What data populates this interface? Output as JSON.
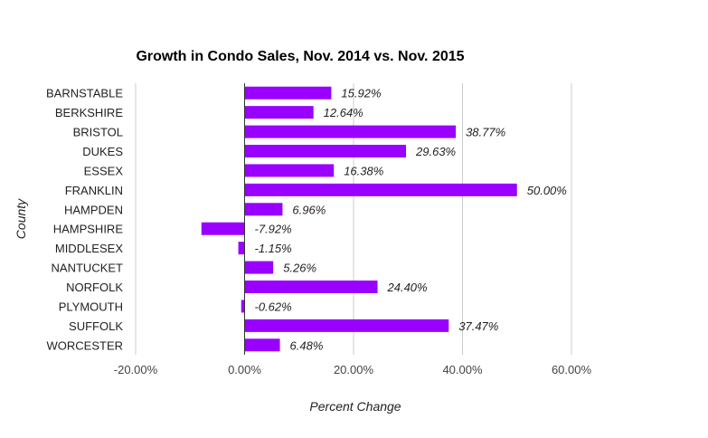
{
  "chart_data": {
    "type": "bar",
    "orientation": "horizontal",
    "title": "Growth in Condo Sales, Nov. 2014 vs. Nov. 2015",
    "xlabel": "Percent Change",
    "ylabel": "County",
    "xlim": [
      -20,
      60
    ],
    "xticks": [
      -20,
      0,
      20,
      40,
      60
    ],
    "xtick_labels": [
      "-20.00%",
      "0.00%",
      "20.00%",
      "40.00%",
      "60.00%"
    ],
    "grid": true,
    "bar_color": "#9900ff",
    "categories": [
      "BARNSTABLE",
      "BERKSHIRE",
      "BRISTOL",
      "DUKES",
      "ESSEX",
      "FRANKLIN",
      "HAMPDEN",
      "HAMPSHIRE",
      "MIDDLESEX",
      "NANTUCKET",
      "NORFOLK",
      "PLYMOUTH",
      "SUFFOLK",
      "WORCESTER"
    ],
    "values": [
      15.92,
      12.64,
      38.77,
      29.63,
      16.38,
      50.0,
      6.96,
      -7.92,
      -1.15,
      5.26,
      24.4,
      -0.62,
      37.47,
      6.48
    ],
    "data_labels": [
      "15.92%",
      "12.64%",
      "38.77%",
      "29.63%",
      "16.38%",
      "50.00%",
      "6.96%",
      "-7.92%",
      "-1.15%",
      "5.26%",
      "24.40%",
      "-0.62%",
      "37.47%",
      "6.48%"
    ]
  }
}
